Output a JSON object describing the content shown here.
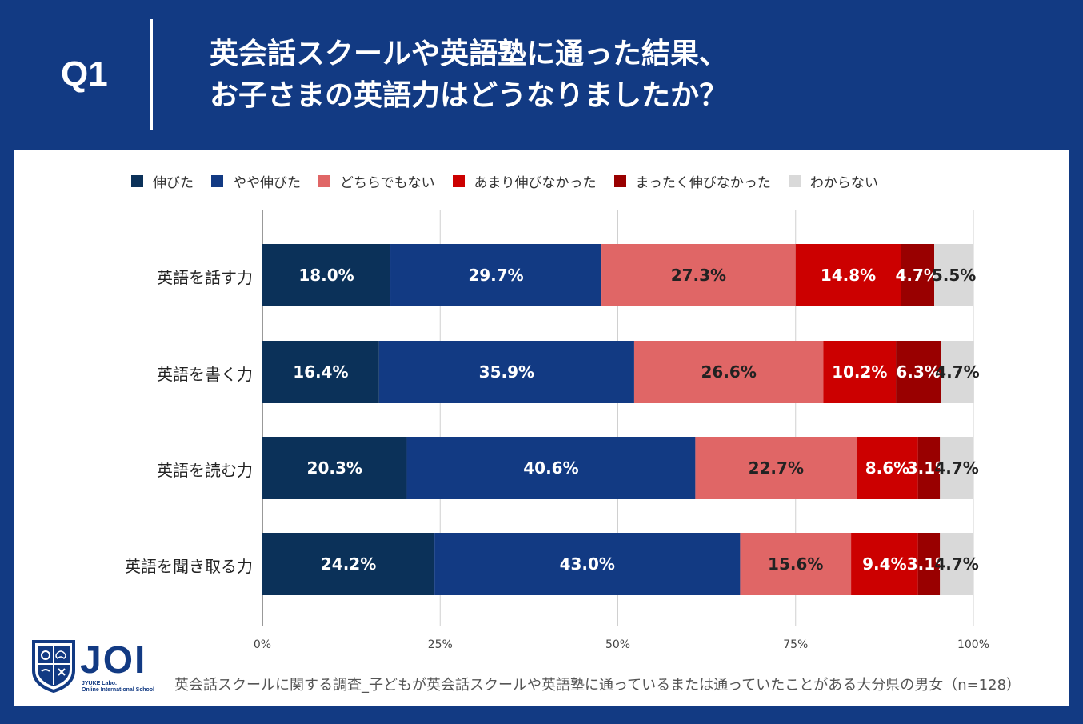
{
  "header": {
    "q_label": "Q1",
    "title_line1": "英会話スクールや英語塾に通った結果、",
    "title_line2": "お子さまの英語力はどうなりましたか？"
  },
  "colors": {
    "background": "#123a83",
    "panel": "#ffffff",
    "series": [
      "#0b3159",
      "#123a83",
      "#e06666",
      "#cc0000",
      "#990000",
      "#d9d9d9"
    ]
  },
  "chart_data": {
    "type": "bar",
    "orientation": "horizontal-stacked-100",
    "categories": [
      "英語を話す力",
      "英語を書く力",
      "英語を読む力",
      "英語を聞き取る力"
    ],
    "series": [
      {
        "name": "伸びた",
        "values": [
          18.0,
          16.4,
          20.3,
          24.2
        ],
        "labels": [
          "18.0%",
          "16.4%",
          "20.3%",
          "24.2%"
        ]
      },
      {
        "name": "やや伸びた",
        "values": [
          29.7,
          35.9,
          40.6,
          43.0
        ],
        "labels": [
          "29.7%",
          "35.9%",
          "40.6%",
          "43.0%"
        ]
      },
      {
        "name": "どちらでもない",
        "values": [
          27.3,
          26.6,
          22.7,
          15.6
        ],
        "labels": [
          "27.3%",
          "26.6%",
          "22.7%",
          "15.6%"
        ]
      },
      {
        "name": "あまり伸びなかった",
        "values": [
          14.8,
          10.2,
          8.6,
          9.4
        ],
        "labels": [
          "14.8%",
          "10.2%",
          "8.6%",
          "9.4%"
        ]
      },
      {
        "name": "まったく伸びなかった",
        "values": [
          4.7,
          6.3,
          3.1,
          3.1
        ],
        "labels": [
          "4.7%",
          "6.3%",
          "3.1%",
          "3.1%"
        ]
      },
      {
        "name": "わからない",
        "values": [
          5.5,
          4.7,
          4.7,
          4.7
        ],
        "labels": [
          "5.5%",
          "4.7%",
          "4.7%",
          "4.7%"
        ]
      }
    ],
    "xlim": [
      0,
      100
    ],
    "x_ticks": [
      "0%",
      "25%",
      "50%",
      "75%",
      "100%"
    ],
    "legend": "top",
    "grid": true
  },
  "footer": {
    "note": "英会話スクールに関する調査_子どもが英会話スクールや英語塾に通っているまたは通っていたことがある大分県の男女（n=128）",
    "logo_text": "JOI",
    "logo_sub1": "JYUKE Labo.",
    "logo_sub2": "Online International School"
  }
}
